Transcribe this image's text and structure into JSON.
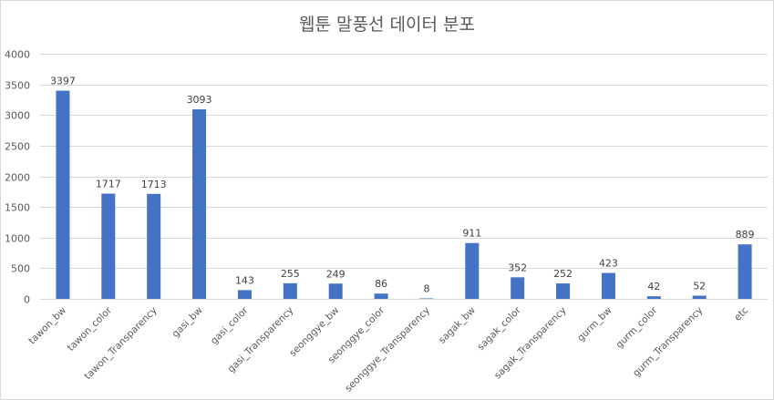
{
  "chart_data": {
    "type": "bar",
    "title": "웹툰 말풍선 데이터 분포",
    "xlabel": "",
    "ylabel": "",
    "ylim": [
      0,
      4000
    ],
    "yticks": [
      0,
      500,
      1000,
      1500,
      2000,
      2500,
      3000,
      3500,
      4000
    ],
    "grid": true,
    "legend": "none",
    "bar_color": "#4472c4",
    "categories": [
      "tawon_bw",
      "tawon_color",
      "tawon_Transparency",
      "gasi_bw",
      "gasi_color",
      "gasi_Transparency",
      "seonggye_bw",
      "seonggye_color",
      "seonggye_Transparency",
      "sagak_bw",
      "sagak_color",
      "sagak_Transparency",
      "gurm_bw",
      "gurm_color",
      "gurm_Transparency",
      "etc"
    ],
    "values": [
      3397,
      1717,
      1713,
      3093,
      143,
      255,
      249,
      86,
      8,
      911,
      352,
      252,
      423,
      42,
      52,
      889
    ]
  }
}
